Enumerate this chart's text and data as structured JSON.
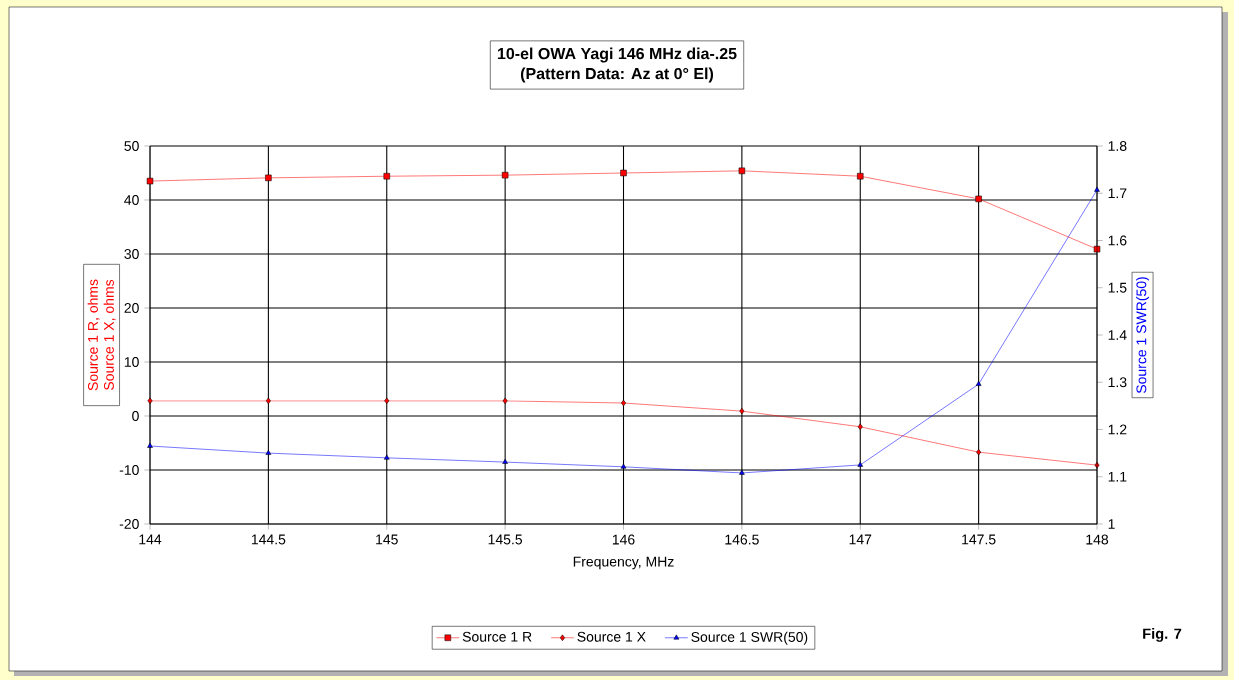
{
  "chart_data": {
    "type": "line",
    "title": "10-el OWA Yagi 146 MHz dia-.25",
    "subtitle": "(Pattern Data: Az at 0° El)",
    "xlabel": "Frequency, MHz",
    "ylabel": "Source 1 R, ohms Source 1 X, ohms",
    "y2label": "Source 1 SWR(50)",
    "x": [
      144,
      144.5,
      145,
      145.5,
      146,
      146.5,
      147,
      147.5,
      148
    ],
    "series": [
      {
        "name": "Source 1 R",
        "color": "#ff0000",
        "marker": "square",
        "values": [
          43.5,
          44.1,
          44.4,
          44.6,
          45.0,
          45.4,
          44.4,
          40.2,
          30.9
        ]
      },
      {
        "name": "Source 1 X",
        "color": "#ff0000",
        "marker": "diamond",
        "values": [
          2.8,
          2.8,
          2.8,
          2.8,
          2.4,
          0.9,
          -2.0,
          -6.7,
          -9.1
        ]
      },
      {
        "name": "Source 1 SWR(50)",
        "color": "#0000ff",
        "marker": "triangle",
        "axis": "y2",
        "values": [
          1.165,
          1.15,
          1.14,
          1.131,
          1.121,
          1.108,
          1.125,
          1.296,
          1.707
        ]
      }
    ],
    "xlim": [
      144,
      148
    ],
    "xticks": [
      144,
      144.5,
      145,
      145.5,
      146,
      146.5,
      147,
      147.5,
      148
    ],
    "ylim": [
      -20,
      50
    ],
    "yticks": [
      -20,
      -10,
      0,
      10,
      20,
      30,
      40,
      50
    ],
    "y2lim": [
      1,
      1.8
    ],
    "y2ticks": [
      1,
      1.1,
      1.2,
      1.3,
      1.4,
      1.5,
      1.6,
      1.7,
      1.8
    ],
    "grid": true,
    "legend": "bottom",
    "line_style": "solid",
    "annotations": [
      "Fig. 7"
    ]
  }
}
